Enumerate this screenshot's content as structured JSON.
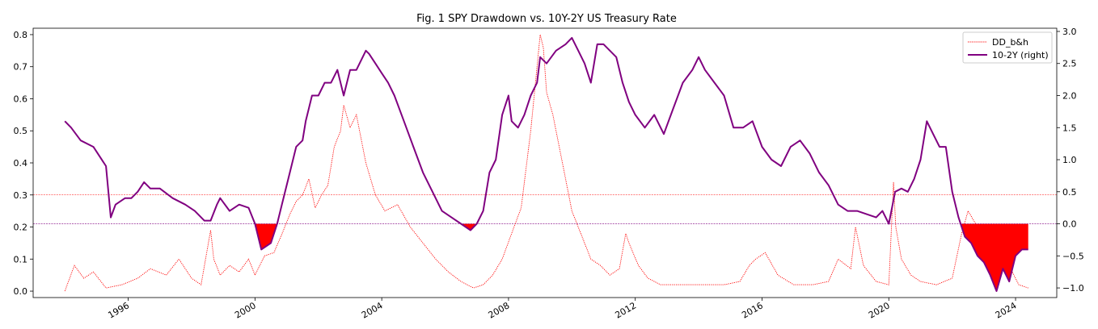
{
  "chart_data": {
    "type": "line",
    "title": "Fig. 1 SPY Drawdown vs. 10Y-2Y US Treasury Rate",
    "xlabel": "",
    "ylabel": "",
    "y2label": "",
    "xlim": [
      1993.0,
      2025.3
    ],
    "ylim": [
      -0.02,
      0.82
    ],
    "y2lim": [
      -1.15,
      3.05
    ],
    "x_ticks": [
      1996,
      2000,
      2004,
      2008,
      2012,
      2016,
      2020,
      2024
    ],
    "x_tick_labels": [
      "1996",
      "2000",
      "2004",
      "2008",
      "2012",
      "2016",
      "2020",
      "2024"
    ],
    "y_ticks": [
      0.0,
      0.1,
      0.2,
      0.3,
      0.4,
      0.5,
      0.6,
      0.7,
      0.8
    ],
    "y_tick_labels": [
      "0.0",
      "0.1",
      "0.2",
      "0.3",
      "0.4",
      "0.5",
      "0.6",
      "0.7",
      "0.8"
    ],
    "y2_ticks": [
      -1.0,
      -0.5,
      0.0,
      0.5,
      1.0,
      1.5,
      2.0,
      2.5,
      3.0
    ],
    "y2_tick_labels": [
      "−1.0",
      "−0.5",
      "0.0",
      "0.5",
      "1.0",
      "1.5",
      "2.0",
      "2.5",
      "3.0"
    ],
    "hlines": [
      {
        "axis": "left",
        "y": 0.3,
        "color": "#ff0000"
      },
      {
        "axis": "right",
        "y": 0.0,
        "color": "#800080"
      }
    ],
    "grid": false,
    "legend_position": "top-right",
    "series": [
      {
        "name": "DD_b&h",
        "axis": "left",
        "style": "dotted",
        "color": "#ff0000",
        "x": [
          1994.0,
          1994.3,
          1994.6,
          1994.9,
          1995.3,
          1995.8,
          1996.3,
          1996.7,
          1997.2,
          1997.6,
          1998.0,
          1998.3,
          1998.6,
          1998.7,
          1998.9,
          1999.2,
          1999.5,
          1999.8,
          2000.0,
          2000.3,
          2000.6,
          2000.9,
          2001.1,
          2001.3,
          2001.5,
          2001.7,
          2001.9,
          2002.1,
          2002.3,
          2002.5,
          2002.7,
          2002.8,
          2003.0,
          2003.2,
          2003.5,
          2003.8,
          2004.1,
          2004.5,
          2004.9,
          2005.3,
          2005.7,
          2006.1,
          2006.5,
          2006.9,
          2007.2,
          2007.5,
          2007.8,
          2008.1,
          2008.4,
          2008.7,
          2008.9,
          2009.0,
          2009.1,
          2009.2,
          2009.4,
          2009.7,
          2010.0,
          2010.4,
          2010.6,
          2010.9,
          2011.2,
          2011.5,
          2011.7,
          2011.8,
          2012.1,
          2012.4,
          2012.8,
          2013.3,
          2013.8,
          2014.3,
          2014.8,
          2015.3,
          2015.6,
          2015.8,
          2016.1,
          2016.5,
          2017.0,
          2017.6,
          2018.1,
          2018.4,
          2018.8,
          2018.95,
          2019.2,
          2019.6,
          2020.0,
          2020.15,
          2020.22,
          2020.4,
          2020.7,
          2021.0,
          2021.5,
          2022.0,
          2022.3,
          2022.5,
          2022.8,
          2023.0,
          2023.3,
          2023.7,
          2023.9,
          2024.1,
          2024.4
        ],
        "y": [
          0.0,
          0.08,
          0.04,
          0.06,
          0.01,
          0.02,
          0.04,
          0.07,
          0.05,
          0.1,
          0.04,
          0.02,
          0.19,
          0.1,
          0.05,
          0.08,
          0.06,
          0.1,
          0.05,
          0.11,
          0.12,
          0.19,
          0.24,
          0.28,
          0.3,
          0.35,
          0.26,
          0.3,
          0.33,
          0.45,
          0.5,
          0.58,
          0.51,
          0.55,
          0.4,
          0.3,
          0.25,
          0.27,
          0.2,
          0.15,
          0.1,
          0.06,
          0.03,
          0.01,
          0.02,
          0.05,
          0.1,
          0.18,
          0.26,
          0.5,
          0.7,
          0.8,
          0.76,
          0.62,
          0.55,
          0.4,
          0.25,
          0.15,
          0.1,
          0.08,
          0.05,
          0.07,
          0.18,
          0.15,
          0.08,
          0.04,
          0.02,
          0.02,
          0.02,
          0.02,
          0.02,
          0.03,
          0.08,
          0.1,
          0.12,
          0.05,
          0.02,
          0.02,
          0.03,
          0.1,
          0.07,
          0.2,
          0.08,
          0.03,
          0.02,
          0.34,
          0.2,
          0.1,
          0.05,
          0.03,
          0.02,
          0.04,
          0.18,
          0.25,
          0.2,
          0.2,
          0.18,
          0.1,
          0.06,
          0.02,
          0.01
        ]
      },
      {
        "name": "10-2Y (right)",
        "axis": "right",
        "style": "solid",
        "color": "#800080",
        "x": [
          1994.0,
          1994.2,
          1994.5,
          1994.9,
          1995.3,
          1995.45,
          1995.6,
          1995.9,
          1996.1,
          1996.3,
          1996.5,
          1996.7,
          1997.0,
          1997.4,
          1997.8,
          1998.1,
          1998.4,
          1998.6,
          1998.8,
          1998.9,
          1999.2,
          1999.5,
          1999.8,
          2000.0,
          2000.2,
          2000.5,
          2000.7,
          2000.9,
          2001.1,
          2001.3,
          2001.5,
          2001.6,
          2001.8,
          2002.0,
          2002.2,
          2002.4,
          2002.6,
          2002.8,
          2003.0,
          2003.2,
          2003.5,
          2003.6,
          2003.8,
          2004.0,
          2004.2,
          2004.4,
          2004.7,
          2005.0,
          2005.3,
          2005.6,
          2005.9,
          2006.2,
          2006.5,
          2006.8,
          2007.0,
          2007.2,
          2007.4,
          2007.6,
          2007.8,
          2008.0,
          2008.1,
          2008.3,
          2008.5,
          2008.7,
          2008.9,
          2009.0,
          2009.2,
          2009.5,
          2009.8,
          2010.0,
          2010.2,
          2010.4,
          2010.6,
          2010.8,
          2011.0,
          2011.2,
          2011.4,
          2011.6,
          2011.8,
          2012.0,
          2012.3,
          2012.6,
          2012.9,
          2013.2,
          2013.5,
          2013.8,
          2014.0,
          2014.2,
          2014.5,
          2014.8,
          2015.1,
          2015.4,
          2015.7,
          2016.0,
          2016.3,
          2016.6,
          2016.9,
          2017.2,
          2017.5,
          2017.8,
          2018.1,
          2018.4,
          2018.7,
          2019.0,
          2019.3,
          2019.6,
          2019.8,
          2020.0,
          2020.2,
          2020.4,
          2020.6,
          2020.8,
          2021.0,
          2021.2,
          2021.4,
          2021.6,
          2021.8,
          2022.0,
          2022.2,
          2022.4,
          2022.6,
          2022.8,
          2023.0,
          2023.2,
          2023.4,
          2023.6,
          2023.8,
          2024.0,
          2024.2,
          2024.4
        ],
        "y": [
          1.6,
          1.5,
          1.3,
          1.2,
          0.9,
          0.1,
          0.3,
          0.4,
          0.4,
          0.5,
          0.65,
          0.55,
          0.55,
          0.4,
          0.3,
          0.2,
          0.05,
          0.05,
          0.3,
          0.4,
          0.2,
          0.3,
          0.25,
          0.0,
          -0.4,
          -0.3,
          0.0,
          0.4,
          0.8,
          1.2,
          1.3,
          1.6,
          2.0,
          2.0,
          2.2,
          2.2,
          2.4,
          2.0,
          2.4,
          2.4,
          2.7,
          2.65,
          2.5,
          2.35,
          2.2,
          2.0,
          1.6,
          1.2,
          0.8,
          0.5,
          0.2,
          0.1,
          0.0,
          -0.1,
          0.0,
          0.2,
          0.8,
          1.0,
          1.7,
          2.0,
          1.6,
          1.5,
          1.7,
          2.0,
          2.2,
          2.6,
          2.5,
          2.7,
          2.8,
          2.9,
          2.7,
          2.5,
          2.2,
          2.8,
          2.8,
          2.7,
          2.6,
          2.2,
          1.9,
          1.7,
          1.5,
          1.7,
          1.4,
          1.8,
          2.2,
          2.4,
          2.6,
          2.4,
          2.2,
          2.0,
          1.5,
          1.5,
          1.6,
          1.2,
          1.0,
          0.9,
          1.2,
          1.3,
          1.1,
          0.8,
          0.6,
          0.3,
          0.2,
          0.2,
          0.15,
          0.1,
          0.2,
          0.0,
          0.5,
          0.55,
          0.5,
          0.7,
          1.0,
          1.6,
          1.4,
          1.2,
          1.2,
          0.5,
          0.1,
          -0.2,
          -0.3,
          -0.5,
          -0.6,
          -0.8,
          -1.05,
          -0.7,
          -0.9,
          -0.5,
          -0.4,
          -0.4
        ]
      }
    ]
  }
}
